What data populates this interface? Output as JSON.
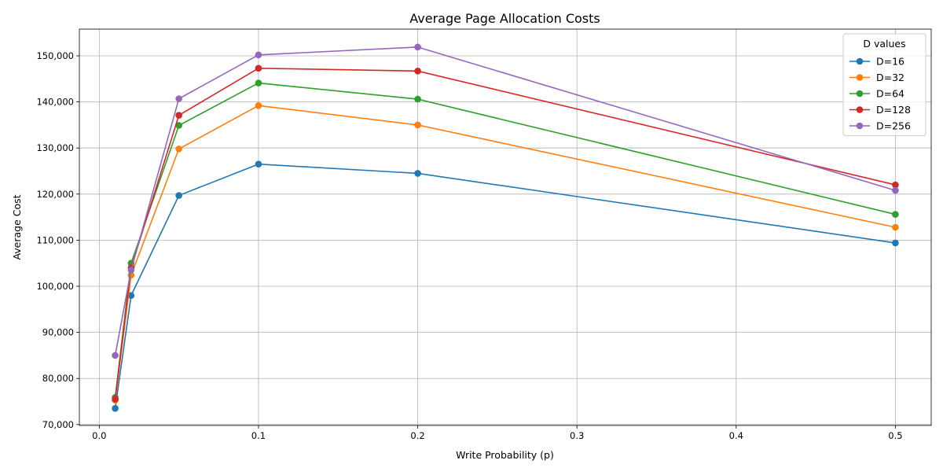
{
  "chart_data": {
    "type": "line",
    "title": "Average Page Allocation Costs",
    "xlabel": "Write Probability (p)",
    "ylabel": "Average Cost",
    "xlim": [
      -0.0125,
      0.5225
    ],
    "ylim": [
      69800,
      155800
    ],
    "x_ticks": [
      0.0,
      0.1,
      0.2,
      0.3,
      0.4,
      0.5
    ],
    "x_tick_labels": [
      "0.0",
      "0.1",
      "0.2",
      "0.3",
      "0.4",
      "0.5"
    ],
    "y_ticks": [
      70000,
      80000,
      90000,
      100000,
      110000,
      120000,
      130000,
      140000,
      150000
    ],
    "y_tick_labels": [
      "70,000",
      "80,000",
      "90,000",
      "100,000",
      "110,000",
      "120,000",
      "130,000",
      "140,000",
      "150,000"
    ],
    "grid": true,
    "marker": "circle",
    "legend": {
      "title": "D values",
      "placement": "top-right"
    },
    "x": [
      0.01,
      0.02,
      0.05,
      0.1,
      0.2,
      0.5
    ],
    "series": [
      {
        "name": "D=16",
        "color": "#1f77b4",
        "values": [
          73500,
          98000,
          119700,
          126500,
          124500,
          109400
        ]
      },
      {
        "name": "D=32",
        "color": "#ff7f0e",
        "values": [
          75300,
          102400,
          129800,
          139200,
          135000,
          112800
        ]
      },
      {
        "name": "D=64",
        "color": "#2ca02c",
        "values": [
          75900,
          105000,
          134900,
          144100,
          140600,
          115600
        ]
      },
      {
        "name": "D=128",
        "color": "#d62728",
        "values": [
          75500,
          104000,
          137100,
          147300,
          146700,
          122000
        ]
      },
      {
        "name": "D=256",
        "color": "#9467bd",
        "values": [
          85000,
          103500,
          140700,
          150200,
          151900,
          120800
        ]
      }
    ]
  }
}
